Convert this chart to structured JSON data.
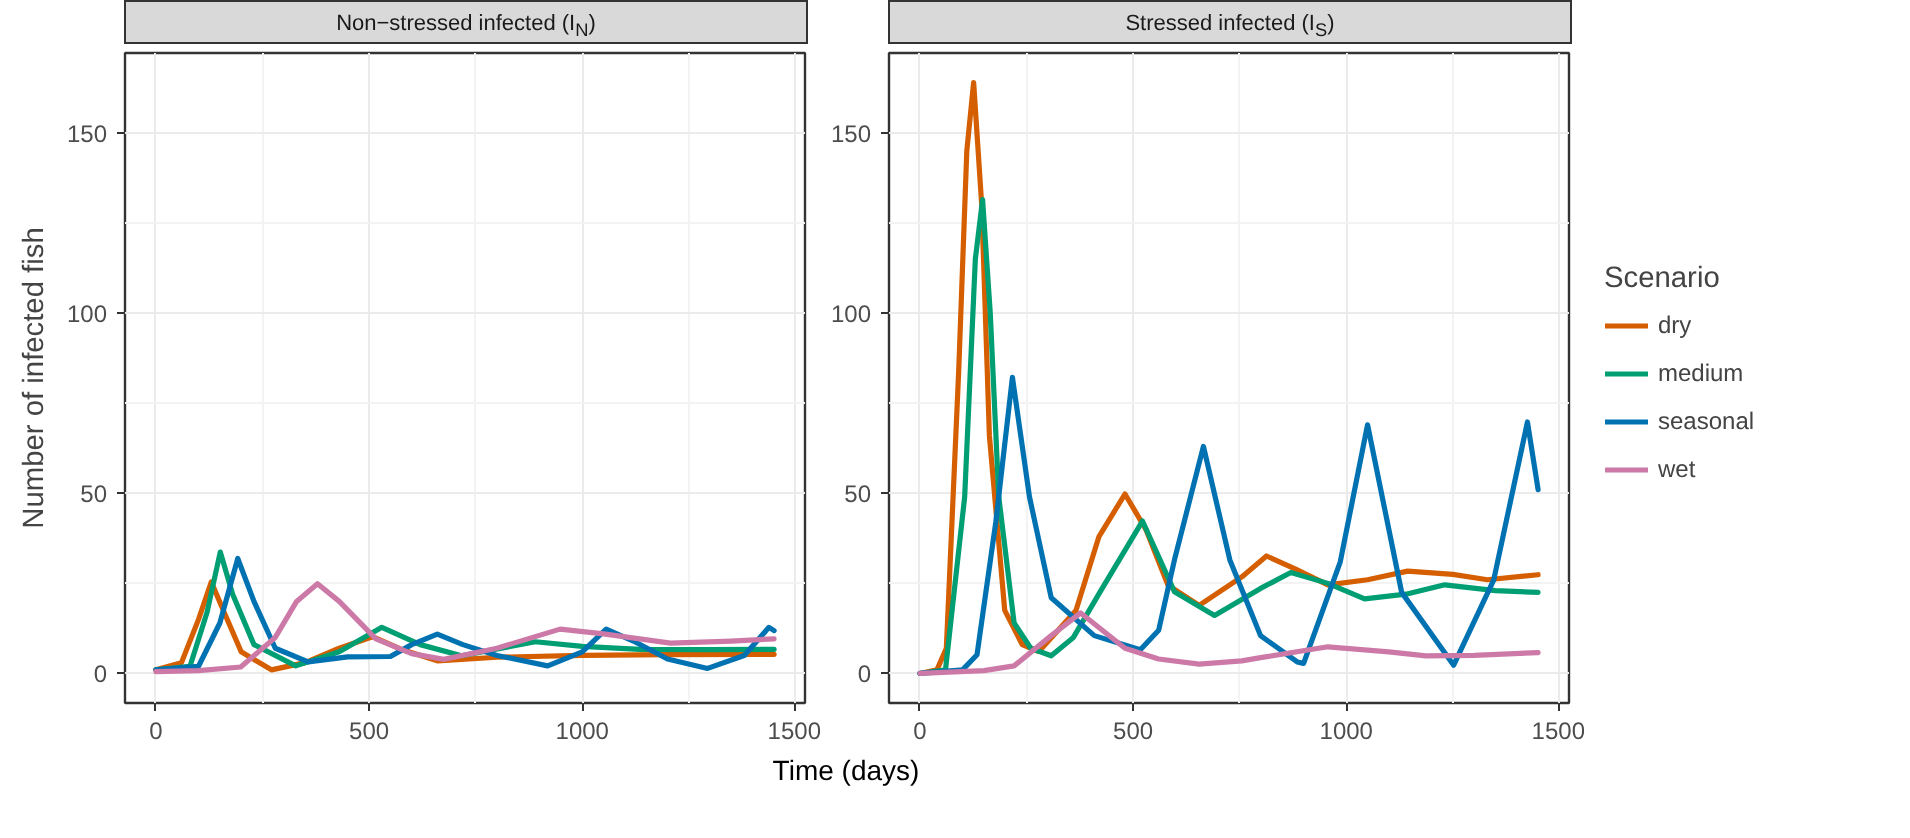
{
  "chart_data": [
    {
      "type": "line",
      "title": "Non−stressed infected (I$_{N}$)",
      "xlabel": "Time (days)",
      "ylabel": "Number of infected fish",
      "xlim": [
        -72.5,
        1522.5
      ],
      "ylim": [
        -8.2,
        172.2
      ],
      "xticks": [
        0,
        500,
        1000,
        1500
      ],
      "yticks": [
        0,
        50,
        100,
        150
      ],
      "grid": true,
      "series": [
        {
          "color": "#d55e00",
          "x": [
            0,
            60,
            100,
            130,
            160,
            200,
            271,
            350,
            430,
            508,
            580,
            660,
            800,
            1000,
            1200,
            1450
          ],
          "values": [
            1,
            3,
            15,
            25.4,
            17,
            6,
            1,
            3,
            7,
            10.2,
            6.5,
            3.5,
            4.5,
            5,
            5.2,
            5.3
          ]
        },
        {
          "color": "#009e73",
          "x": [
            0,
            80,
            120,
            151,
            180,
            230,
            328,
            430,
            530,
            620,
            717,
            890,
            1000,
            1135,
            1300,
            1450
          ],
          "values": [
            1,
            2,
            17,
            33.7,
            22,
            8,
            2.1,
            6,
            12.8,
            8,
            4.9,
            8.8,
            7.5,
            6.7,
            6.6,
            6.7
          ]
        },
        {
          "color": "#0072b2",
          "x": [
            0,
            100,
            150,
            192,
            230,
            280,
            357,
            450,
            550,
            600,
            660,
            720,
            800,
            919,
            1000,
            1056,
            1120,
            1200,
            1294,
            1380,
            1438,
            1450
          ],
          "values": [
            1,
            2,
            14,
            31.9,
            20,
            7,
            3.2,
            4.6,
            4.7,
            8,
            10.9,
            8,
            5,
            2.1,
            6,
            12.3,
            9,
            4,
            1.4,
            5,
            12.8,
            11.9
          ]
        },
        {
          "color": "#cc79a7",
          "x": [
            0,
            100,
            199,
            280,
            330,
            379,
            430,
            516,
            600,
            675,
            800,
            948,
            1050,
            1207,
            1350,
            1450
          ],
          "values": [
            0.5,
            0.8,
            1.8,
            10,
            20,
            24.9,
            20,
            9.6,
            5.5,
            3.9,
            7,
            12.3,
            11,
            8.4,
            9,
            9.6
          ]
        }
      ]
    },
    {
      "type": "line",
      "title": "Stressed infected (I$_{S}$)",
      "legend_title": "Scenario",
      "legend": "right",
      "xlim": [
        -72.5,
        1522.5
      ],
      "ylim": [
        -8.2,
        172.2
      ],
      "xticks": [
        0,
        500,
        1000,
        1500
      ],
      "yticks": [
        0,
        50,
        100,
        150
      ],
      "grid": true,
      "series": [
        {
          "name": "dry",
          "color": "#d55e00",
          "x": [
            0,
            40,
            62,
            91,
            110,
            126,
            145,
            163,
            199,
            240,
            279,
            366,
            420,
            481,
            530,
            582,
            655,
            755,
            813,
            880,
            957,
            1050,
            1144,
            1250,
            1331,
            1450
          ],
          "values": [
            0,
            1,
            7,
            84,
            145,
            164,
            130,
            66,
            17.5,
            8,
            6.1,
            17.5,
            38,
            49.8,
            40,
            24.5,
            18.9,
            26.8,
            32.6,
            29,
            24.6,
            26,
            28.4,
            27.5,
            26,
            27.4
          ]
        },
        {
          "name": "medium",
          "color": "#009e73",
          "x": [
            0,
            60,
            105,
            130,
            147,
            165,
            185,
            221,
            260,
            308,
            360,
            423,
            522,
            597,
            691,
            799,
            870,
            957,
            1043,
            1140,
            1231,
            1350,
            1450
          ],
          "values": [
            0,
            1,
            49,
            115,
            131.5,
            100,
            49,
            14,
            7,
            4.9,
            10,
            22.7,
            42.3,
            22.7,
            16.1,
            23.6,
            28,
            25,
            20.7,
            22,
            24.6,
            23,
            22.5
          ]
        },
        {
          "name": "seasonal",
          "color": "#0072b2",
          "x": [
            0,
            100,
            134,
            178,
            217,
            257,
            308,
            409,
            517,
            560,
            597,
            665,
            727,
            799,
            885,
            900,
            986,
            1050,
            1130,
            1252,
            1346,
            1425,
            1450
          ],
          "values": [
            0,
            1,
            5.2,
            42,
            82.2,
            49,
            21,
            10.5,
            6.6,
            12,
            31.5,
            63,
            31.5,
            10.5,
            3.2,
            2.8,
            31,
            69,
            22.5,
            2.3,
            26,
            69.8,
            51
          ]
        },
        {
          "name": "wet",
          "color": "#cc79a7",
          "x": [
            0,
            150,
            221,
            308,
            377,
            481,
            560,
            655,
            755,
            799,
            957,
            1100,
            1187,
            1300,
            1450
          ],
          "values": [
            0,
            0.8,
            2.1,
            10.5,
            16.8,
            7,
            4,
            2.6,
            3.5,
            4.4,
            7.4,
            6,
            4.9,
            5,
            5.8
          ]
        }
      ]
    }
  ]
}
